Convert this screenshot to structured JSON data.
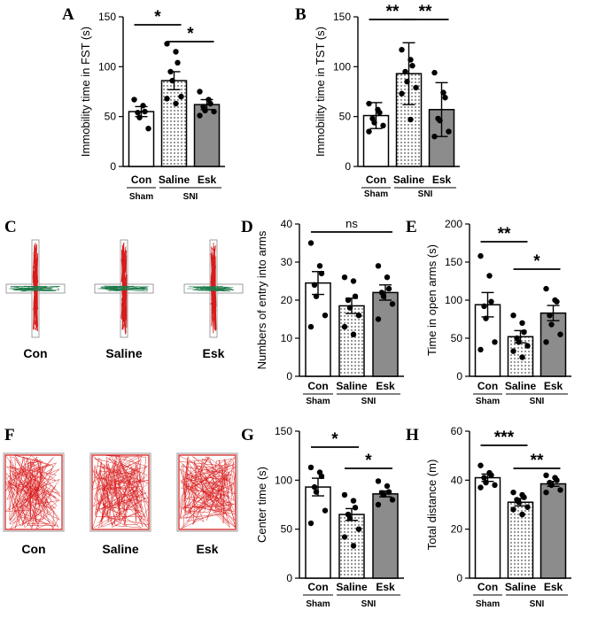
{
  "colors": {
    "sham_fill": "#ffffff",
    "saline_fill": "#ffffff",
    "saline_pattern": "dotted",
    "esk_fill": "#8c8c8c",
    "axis": "#000000",
    "track_line": "#d81b1b",
    "track_secondary": "#1e7a4a"
  },
  "chart_data": [
    {
      "panel": "A",
      "type": "bar",
      "categories": [
        "Con",
        "Saline",
        "Esk"
      ],
      "groups": [
        {
          "label": "Sham",
          "categories": [
            "Con"
          ]
        },
        {
          "label": "SNI",
          "categories": [
            "Saline",
            "Esk"
          ]
        }
      ],
      "ylabel": "Immobility time in FST (s)",
      "ylim": [
        0,
        150
      ],
      "yticks": [
        0,
        50,
        100,
        150
      ],
      "means": [
        55,
        86,
        62
      ],
      "sem": [
        5,
        9,
        5
      ],
      "points": [
        [
          67,
          61,
          55,
          54,
          49,
          38
        ],
        [
          123,
          115,
          104,
          95,
          86,
          70,
          68,
          63
        ],
        [
          75,
          67,
          63,
          60,
          56,
          55,
          51
        ]
      ],
      "significance": [
        {
          "pair": [
            0,
            1
          ],
          "label": "*"
        },
        {
          "pair": [
            1,
            2
          ],
          "label": "*"
        }
      ]
    },
    {
      "panel": "B",
      "type": "bar",
      "categories": [
        "Con",
        "Saline",
        "Esk"
      ],
      "groups": [
        {
          "label": "Sham",
          "categories": [
            "Con"
          ]
        },
        {
          "label": "SNI",
          "categories": [
            "Saline",
            "Esk"
          ]
        }
      ],
      "ylabel": "Immobility time in TST (s)",
      "ylim": [
        0,
        150
      ],
      "yticks": [
        0,
        50,
        100,
        150
      ],
      "means": [
        51,
        93,
        57
      ],
      "sd": [
        13,
        31,
        27
      ],
      "points": [
        [
          63,
          57,
          54,
          48,
          44,
          41,
          35
        ],
        [
          117,
          107,
          101,
          95,
          85,
          79,
          73,
          47
        ],
        [
          94,
          74,
          69,
          48,
          46,
          35,
          30
        ]
      ],
      "significance": [
        {
          "pair": [
            0,
            1
          ],
          "label": "**"
        },
        {
          "pair": [
            1,
            2
          ],
          "label": "**"
        }
      ]
    },
    {
      "panel": "D",
      "type": "bar",
      "categories": [
        "Con",
        "Saline",
        "Esk"
      ],
      "groups": [
        {
          "label": "Sham",
          "categories": [
            "Con"
          ]
        },
        {
          "label": "SNI",
          "categories": [
            "Saline",
            "Esk"
          ]
        }
      ],
      "ylabel": "Numbers of entry into arms",
      "ylim": [
        0,
        40
      ],
      "yticks": [
        0,
        10,
        20,
        30,
        40
      ],
      "means": [
        24.5,
        18.5,
        22
      ],
      "sem": [
        3,
        2,
        2
      ],
      "points": [
        [
          35,
          29,
          27,
          24,
          21,
          16,
          13
        ],
        [
          26,
          25,
          21,
          20,
          18,
          16,
          13,
          11
        ],
        [
          29,
          26,
          23,
          22,
          21,
          19,
          15
        ]
      ],
      "significance": [
        {
          "pair": [
            0,
            2
          ],
          "label": "ns"
        }
      ]
    },
    {
      "panel": "E",
      "type": "bar",
      "categories": [
        "Con",
        "Saline",
        "Esk"
      ],
      "groups": [
        {
          "label": "Sham",
          "categories": [
            "Con"
          ]
        },
        {
          "label": "SNI",
          "categories": [
            "Saline",
            "Esk"
          ]
        }
      ],
      "ylabel": "Time in open arms (s)",
      "ylim": [
        0,
        200
      ],
      "yticks": [
        0,
        50,
        100,
        150,
        200
      ],
      "means": [
        94,
        52,
        83
      ],
      "sem": [
        16,
        8,
        10
      ],
      "points": [
        [
          158,
          132,
          98,
          92,
          76,
          45,
          35
        ],
        [
          80,
          70,
          58,
          50,
          45,
          40,
          33,
          25
        ],
        [
          115,
          100,
          98,
          80,
          68,
          55,
          45
        ]
      ],
      "significance": [
        {
          "pair": [
            0,
            1
          ],
          "label": "**"
        },
        {
          "pair": [
            1,
            2
          ],
          "label": "*"
        }
      ]
    },
    {
      "panel": "G",
      "type": "bar",
      "categories": [
        "Con",
        "Saline",
        "Esk"
      ],
      "groups": [
        {
          "label": "Sham",
          "categories": [
            "Con"
          ]
        },
        {
          "label": "SNI",
          "categories": [
            "Saline",
            "Esk"
          ]
        }
      ],
      "ylabel": "Center time (s)",
      "ylim": [
        0,
        150
      ],
      "yticks": [
        0,
        50,
        100,
        150
      ],
      "means": [
        93,
        65,
        86
      ],
      "sem": [
        9,
        6,
        3
      ],
      "points": [
        [
          113,
          108,
          104,
          93,
          88,
          69,
          56
        ],
        [
          85,
          79,
          72,
          65,
          61,
          50,
          42,
          33
        ],
        [
          99,
          94,
          88,
          87,
          85,
          80,
          75
        ]
      ],
      "significance": [
        {
          "pair": [
            0,
            1
          ],
          "label": "*"
        },
        {
          "pair": [
            1,
            2
          ],
          "label": "*"
        }
      ]
    },
    {
      "panel": "H",
      "type": "bar",
      "categories": [
        "Con",
        "Saline",
        "Esk"
      ],
      "groups": [
        {
          "label": "Sham",
          "categories": [
            "Con"
          ]
        },
        {
          "label": "SNI",
          "categories": [
            "Saline",
            "Esk"
          ]
        }
      ],
      "ylabel": "Total distance (m)",
      "ylim": [
        0,
        60
      ],
      "yticks": [
        0,
        20,
        40,
        60
      ],
      "means": [
        41,
        31,
        38.5
      ],
      "sem": [
        1.5,
        1.5,
        1
      ],
      "points": [
        [
          46,
          43,
          42,
          41,
          39,
          38,
          37
        ],
        [
          35,
          34,
          33,
          32,
          31,
          29,
          28,
          26
        ],
        [
          42,
          41,
          40,
          39,
          38,
          36,
          35
        ]
      ],
      "significance": [
        {
          "pair": [
            0,
            1
          ],
          "label": "***"
        },
        {
          "pair": [
            1,
            2
          ],
          "label": "**"
        }
      ]
    }
  ],
  "tracking": [
    {
      "panel": "C",
      "kind": "plus-maze",
      "labels": [
        "Con",
        "Saline",
        "Esk"
      ]
    },
    {
      "panel": "F",
      "kind": "open-field",
      "labels": [
        "Con",
        "Saline",
        "Esk"
      ]
    }
  ]
}
